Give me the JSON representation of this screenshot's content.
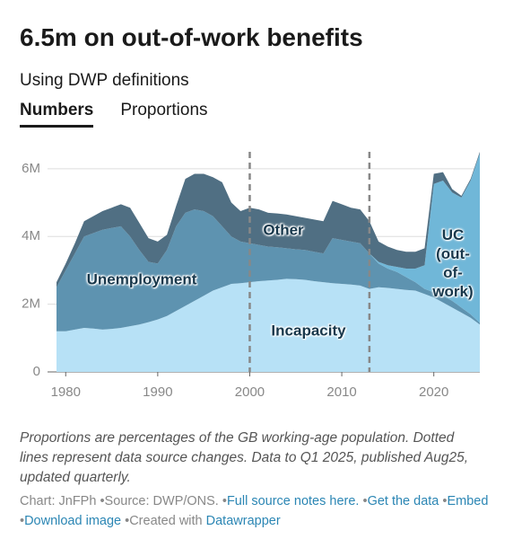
{
  "chart_data": {
    "type": "stacked_area",
    "title": "6.5m on out-of-work benefits",
    "subtitle": "Using DWP definitions",
    "tabs": [
      "Numbers",
      "Proportions"
    ],
    "active_tab": 0,
    "x": [
      1979,
      1980,
      1981,
      1982,
      1983,
      1984,
      1985,
      1986,
      1987,
      1988,
      1989,
      1990,
      1991,
      1992,
      1993,
      1994,
      1995,
      1996,
      1997,
      1998,
      1999,
      2000,
      2001,
      2002,
      2003,
      2004,
      2005,
      2006,
      2007,
      2008,
      2009,
      2010,
      2011,
      2012,
      2013,
      2014,
      2015,
      2016,
      2017,
      2018,
      2019,
      2020,
      2021,
      2022,
      2023,
      2024,
      2025
    ],
    "series": [
      {
        "name": "Incapacity",
        "color": "#b7e1f6",
        "values": [
          1.2,
          1.2,
          1.25,
          1.3,
          1.28,
          1.25,
          1.27,
          1.3,
          1.35,
          1.4,
          1.47,
          1.55,
          1.65,
          1.8,
          1.95,
          2.1,
          2.25,
          2.4,
          2.5,
          2.6,
          2.62,
          2.65,
          2.68,
          2.7,
          2.72,
          2.75,
          2.74,
          2.72,
          2.68,
          2.65,
          2.62,
          2.6,
          2.58,
          2.55,
          2.45,
          2.5,
          2.48,
          2.45,
          2.42,
          2.4,
          2.3,
          2.2,
          2.05,
          1.9,
          1.75,
          1.6,
          1.4
        ]
      },
      {
        "name": "Unemployment",
        "color": "#5e93b0",
        "values": [
          1.3,
          1.8,
          2.25,
          2.7,
          2.82,
          2.95,
          2.98,
          3.0,
          2.65,
          2.2,
          1.78,
          1.65,
          1.95,
          2.5,
          2.75,
          2.7,
          2.5,
          2.2,
          1.8,
          1.4,
          1.23,
          1.15,
          1.07,
          1.0,
          0.96,
          0.9,
          0.88,
          0.88,
          0.87,
          0.85,
          1.33,
          1.3,
          1.27,
          1.25,
          1.05,
          0.7,
          0.57,
          0.5,
          0.38,
          0.25,
          0.15,
          0.15,
          0.2,
          0.2,
          0.15,
          0.1,
          0.05
        ]
      },
      {
        "name": "UC (out-of-work)",
        "color": "#70b7d8",
        "values": [
          null,
          null,
          null,
          null,
          null,
          null,
          null,
          null,
          null,
          null,
          null,
          null,
          null,
          null,
          null,
          null,
          null,
          null,
          null,
          null,
          null,
          null,
          null,
          null,
          null,
          null,
          null,
          null,
          null,
          null,
          null,
          null,
          null,
          null,
          0,
          0.05,
          0.1,
          0.15,
          0.25,
          0.4,
          0.7,
          3.2,
          3.4,
          3.2,
          3.25,
          3.95,
          5.0
        ]
      },
      {
        "name": "Other",
        "color": "#506f83",
        "values": [
          0.15,
          0.2,
          0.3,
          0.45,
          0.5,
          0.55,
          0.6,
          0.65,
          0.85,
          0.8,
          0.7,
          0.65,
          0.45,
          0.6,
          1.0,
          1.05,
          1.1,
          1.15,
          1.3,
          1.0,
          0.9,
          1.05,
          1.05,
          1.0,
          1.0,
          1.0,
          0.98,
          0.95,
          0.95,
          0.95,
          1.1,
          1.05,
          1.0,
          1.0,
          0.95,
          0.6,
          0.55,
          0.5,
          0.5,
          0.5,
          0.5,
          0.3,
          0.25,
          0.1,
          0.05,
          0.05,
          0.05
        ]
      }
    ],
    "xlim": [
      1979,
      2025
    ],
    "xticks": [
      1980,
      1990,
      2000,
      2010,
      2020
    ],
    "ylim": [
      0,
      6.5
    ],
    "yticks": [
      0,
      {
        "value": 2,
        "label": "2M"
      },
      {
        "value": 4,
        "label": "4M"
      },
      {
        "value": 6,
        "label": "6M"
      }
    ],
    "grid": true,
    "source_change_years": [
      2000,
      2013
    ],
    "notes": "Proportions are percentages of the GB working-age population. Dotted lines represent data source changes. Data to Q1 2025, published Aug25, updated quarterly.",
    "footer": {
      "credit": "Chart: JnFPh",
      "source": "Source: DWP/ONS.",
      "links": [
        "Full source notes here.",
        "Get the data",
        "Embed",
        "Download image"
      ],
      "created": "Created with",
      "tool": "Datawrapper"
    }
  }
}
